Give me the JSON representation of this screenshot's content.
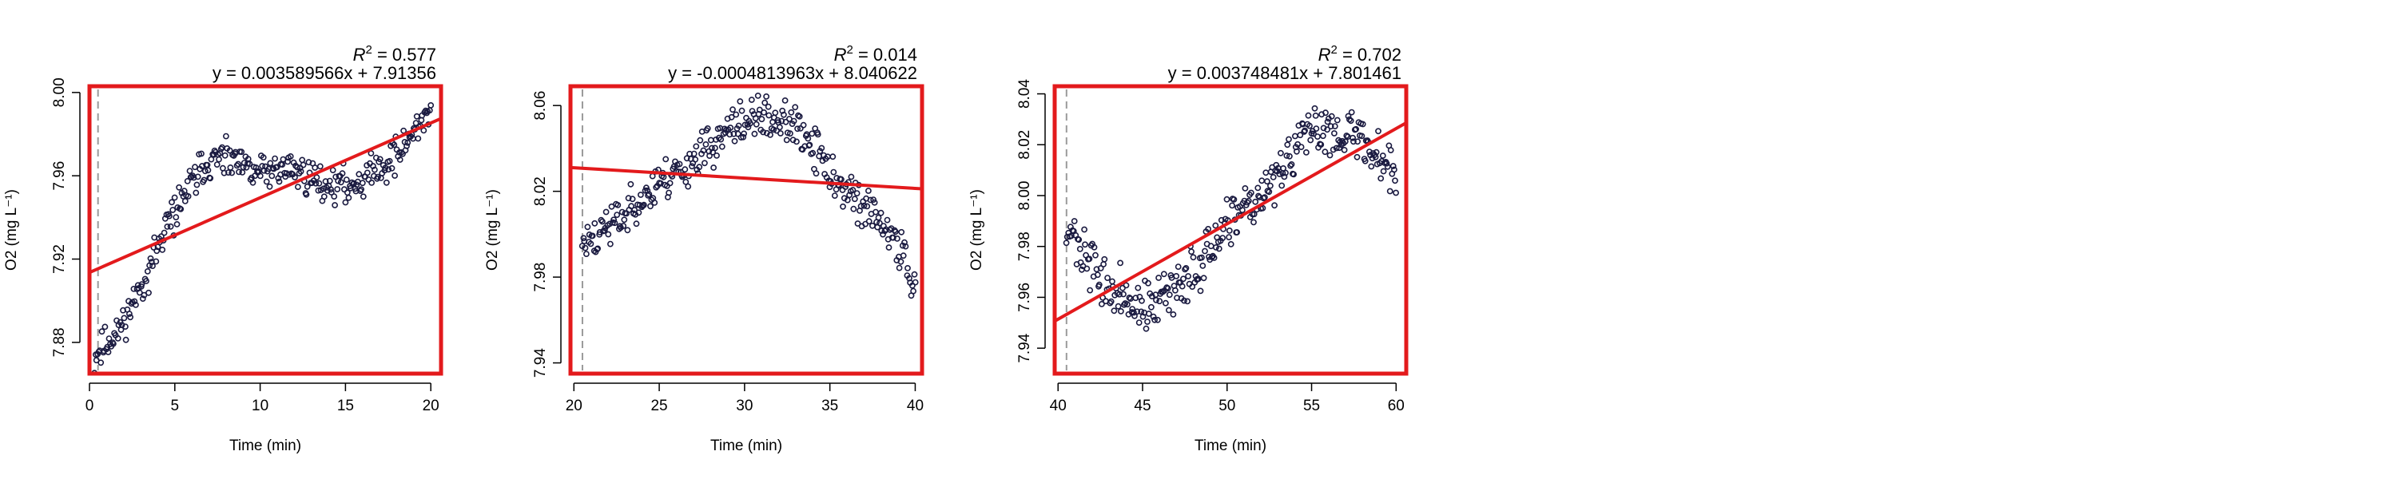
{
  "chart_data": [
    {
      "type": "scatter",
      "xlabel": "Time (min)",
      "ylabel": "O2 (mg L⁻¹)",
      "xlim": [
        0,
        20.6
      ],
      "ylim": [
        7.865,
        8.003
      ],
      "xticks": [
        "0",
        "5",
        "10",
        "15",
        "20"
      ],
      "yticks": [
        "7.88",
        "7.92",
        "7.96",
        "8.00"
      ],
      "r2_label": "R",
      "r2_sup": "2",
      "r2_value": " = 0.577",
      "equation": "y = 0.003589566x + 7.91356",
      "fit": {
        "slope": 0.003589566,
        "intercept": 7.91356
      },
      "start_marker_x": 0.5,
      "profile_x": [
        0.3,
        0.7,
        1.5,
        2.5,
        3.5,
        4.5,
        5.5,
        6.5,
        7.5,
        8.5,
        9.5,
        10.5,
        11.5,
        12.5,
        13.5,
        14.5,
        15.5,
        16.5,
        17.5,
        18.5,
        19.5,
        20.0
      ],
      "profile_y": [
        7.872,
        7.877,
        7.883,
        7.898,
        7.915,
        7.935,
        7.95,
        7.963,
        7.968,
        7.966,
        7.962,
        7.962,
        7.964,
        7.961,
        7.957,
        7.955,
        7.956,
        7.962,
        7.966,
        7.975,
        7.987,
        7.993
      ],
      "noise": 0.006,
      "n_points": 320,
      "seed": 11
    },
    {
      "type": "scatter",
      "xlabel": "Time (min)",
      "ylabel": "O2 (mg L⁻¹)",
      "xlim": [
        19.8,
        40.4
      ],
      "ylim": [
        7.935,
        8.069
      ],
      "xticks": [
        "20",
        "25",
        "30",
        "35",
        "40"
      ],
      "yticks": [
        "7.94",
        "7.98",
        "8.02",
        "8.06"
      ],
      "r2_label": "R",
      "r2_sup": "2",
      "r2_value": " = 0.014",
      "equation": "y = -0.0004813963x + 8.040622",
      "fit": {
        "slope": -0.0004813963,
        "intercept": 8.040622
      },
      "start_marker_x": 20.5,
      "profile_x": [
        20.5,
        21.5,
        22.5,
        23.5,
        24.5,
        25.5,
        26.5,
        27.5,
        28.5,
        29.5,
        30.5,
        31.5,
        32.5,
        33.5,
        34.5,
        35.5,
        36.5,
        37.5,
        38.5,
        39.5,
        40.0
      ],
      "profile_y": [
        7.995,
        8.0,
        8.006,
        8.014,
        8.02,
        8.026,
        8.032,
        8.038,
        8.044,
        8.05,
        8.054,
        8.055,
        8.052,
        8.045,
        8.035,
        8.024,
        8.016,
        8.009,
        8.0,
        7.988,
        7.975
      ],
      "noise": 0.007,
      "n_points": 320,
      "seed": 23
    },
    {
      "type": "scatter",
      "xlabel": "Time (min)",
      "ylabel": "O2 (mg L⁻¹)",
      "xlim": [
        39.8,
        60.6
      ],
      "ylim": [
        7.93,
        8.043
      ],
      "xticks": [
        "40",
        "45",
        "50",
        "55",
        "60"
      ],
      "yticks": [
        "7.94",
        "7.96",
        "7.98",
        "8.00",
        "8.02",
        "8.04"
      ],
      "r2_label": "R",
      "r2_sup": "2",
      "r2_value": " = 0.702",
      "equation": "y = 0.003748481x + 7.801461",
      "fit": {
        "slope": 0.003748481,
        "intercept": 7.801461
      },
      "start_marker_x": 40.5,
      "profile_x": [
        40.5,
        41.0,
        41.5,
        42.0,
        43.0,
        44.0,
        45.0,
        46.0,
        47.0,
        48.0,
        49.0,
        50.0,
        51.0,
        52.0,
        53.0,
        54.0,
        55.0,
        56.0,
        57.0,
        58.0,
        59.0,
        60.0
      ],
      "profile_y": [
        7.988,
        7.982,
        7.976,
        7.972,
        7.964,
        7.958,
        7.956,
        7.958,
        7.963,
        7.97,
        7.978,
        7.986,
        7.993,
        8.0,
        8.008,
        8.017,
        8.025,
        8.027,
        8.025,
        8.022,
        8.016,
        8.008
      ],
      "noise": 0.007,
      "n_points": 320,
      "seed": 37
    }
  ]
}
